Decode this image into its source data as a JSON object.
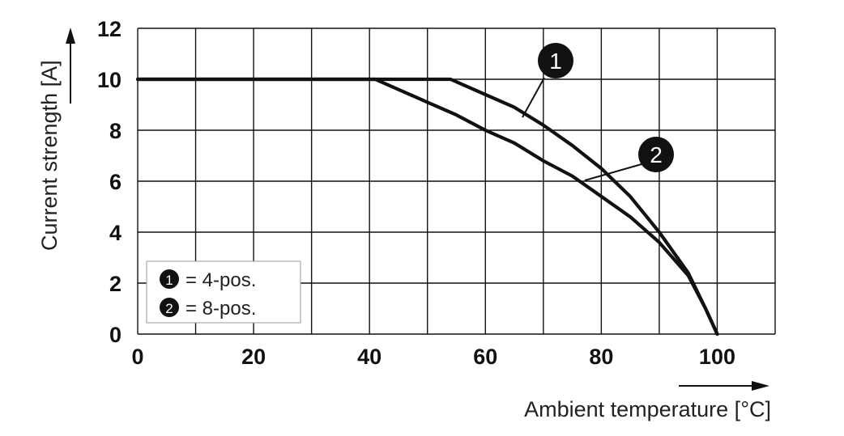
{
  "chart_data": {
    "type": "line",
    "xlabel": "Ambient temperature [°C]",
    "ylabel": "Current strength [A]",
    "xlim": [
      0,
      110
    ],
    "ylim": [
      0,
      12
    ],
    "x_ticks": [
      0,
      20,
      40,
      60,
      80,
      100
    ],
    "y_ticks": [
      0,
      2,
      4,
      6,
      8,
      10,
      12
    ],
    "grid": true,
    "legend": {
      "placement": "bottom-left",
      "entries": [
        {
          "marker": "1",
          "text": "= 4-pos."
        },
        {
          "marker": "2",
          "text": "= 8-pos."
        }
      ]
    },
    "series": [
      {
        "marker": "1",
        "points": [
          [
            0,
            10
          ],
          [
            54,
            10
          ],
          [
            60,
            9.4
          ],
          [
            65,
            8.9
          ],
          [
            70,
            8.2
          ],
          [
            75,
            7.4
          ],
          [
            80,
            6.5
          ],
          [
            85,
            5.4
          ],
          [
            90,
            4.0
          ],
          [
            95,
            2.4
          ],
          [
            98,
            1.0
          ],
          [
            100,
            0
          ]
        ]
      },
      {
        "marker": "2",
        "points": [
          [
            0,
            10
          ],
          [
            41,
            10
          ],
          [
            50,
            9.1
          ],
          [
            55,
            8.6
          ],
          [
            60,
            8.0
          ],
          [
            65,
            7.5
          ],
          [
            70,
            6.8
          ],
          [
            75,
            6.2
          ],
          [
            80,
            5.4
          ],
          [
            85,
            4.6
          ],
          [
            90,
            3.6
          ],
          [
            95,
            2.3
          ],
          [
            98,
            1.0
          ],
          [
            100,
            0
          ]
        ]
      }
    ]
  }
}
